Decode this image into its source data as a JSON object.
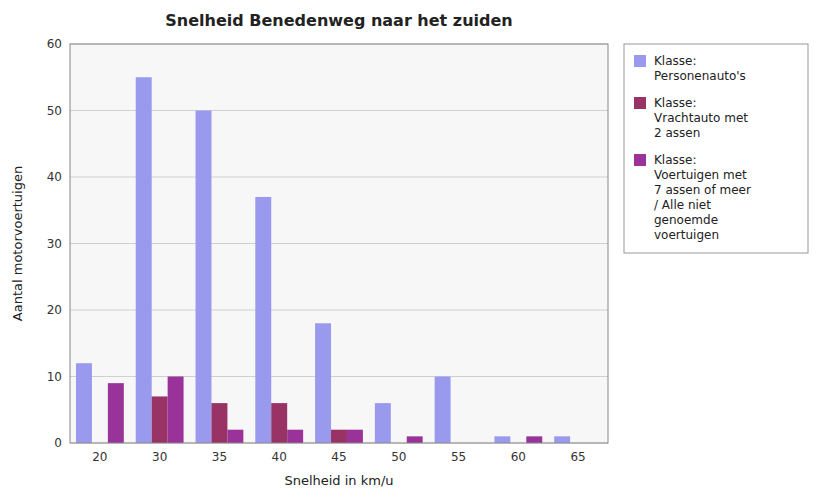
{
  "chart_data": {
    "type": "bar",
    "title": "Snelheid Benedenweg naar het zuiden",
    "x_label": "Snelheid in km/u",
    "y_label": "Aantal motorvoertuigen",
    "categories": [
      "20",
      "30",
      "35",
      "40",
      "45",
      "50",
      "55",
      "60",
      "65"
    ],
    "series": [
      {
        "name": "Klasse:\nPersonenauto's",
        "color": "#9999ee",
        "values": [
          12,
          55,
          50,
          37,
          18,
          6,
          10,
          1,
          1
        ]
      },
      {
        "name": "Klasse:\nVrachtauto met\n2 assen",
        "color": "#993366",
        "values": [
          0,
          7,
          6,
          6,
          2,
          0,
          0,
          0,
          0
        ]
      },
      {
        "name": "Klasse:\nVoertuigen met\n7 assen of meer\n/ Alle niet\ngenoemde\nvoertuigen",
        "color": "#993399",
        "values": [
          9,
          10,
          2,
          2,
          2,
          1,
          0,
          1,
          0
        ]
      }
    ],
    "ylim": [
      0,
      60
    ],
    "yticks": [
      0,
      10,
      20,
      30,
      40,
      50,
      60
    ],
    "grid": true,
    "legend": "right"
  }
}
